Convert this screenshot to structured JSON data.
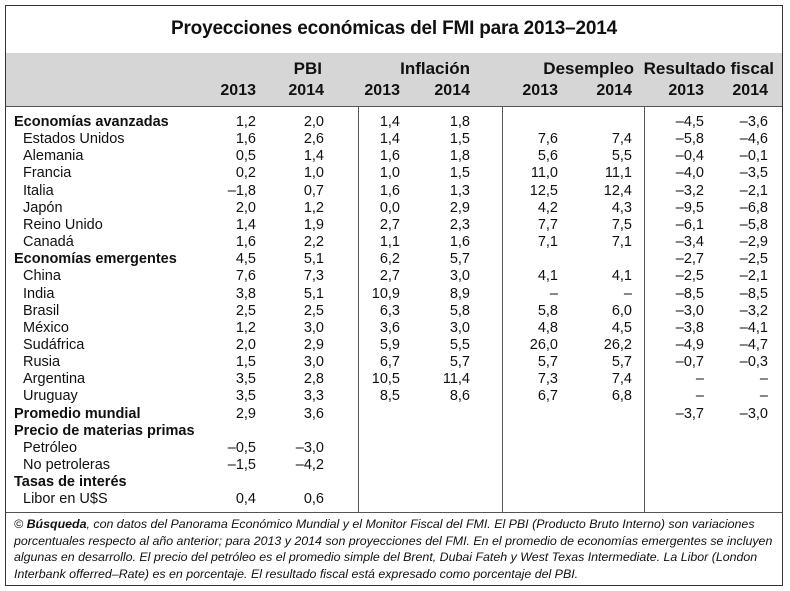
{
  "title": "Proyecciones económicas del FMI para 2013–2014",
  "groups": [
    "PBI",
    "Inflación",
    "Desempleo",
    "Resultado fiscal"
  ],
  "years": [
    "2013",
    "2014",
    "2013",
    "2014",
    "2013",
    "2014",
    "2013",
    "2014"
  ],
  "rows": [
    {
      "label": "Economías avanzadas",
      "bold": true,
      "values": [
        "1,2",
        "2,0",
        "1,4",
        "1,8",
        "",
        "",
        "–4,5",
        "–3,6"
      ]
    },
    {
      "label": "Estados Unidos",
      "bold": false,
      "values": [
        "1,6",
        "2,6",
        "1,4",
        "1,5",
        "7,6",
        "7,4",
        "–5,8",
        "–4,6"
      ]
    },
    {
      "label": "Alemania",
      "bold": false,
      "values": [
        "0,5",
        "1,4",
        "1,6",
        "1,8",
        "5,6",
        "5,5",
        "–0,4",
        "–0,1"
      ]
    },
    {
      "label": "Francia",
      "bold": false,
      "values": [
        "0,2",
        "1,0",
        "1,0",
        "1,5",
        "11,0",
        "11,1",
        "–4,0",
        "–3,5"
      ]
    },
    {
      "label": "Italia",
      "bold": false,
      "values": [
        "–1,8",
        "0,7",
        "1,6",
        "1,3",
        "12,5",
        "12,4",
        "–3,2",
        "–2,1"
      ]
    },
    {
      "label": "Japón",
      "bold": false,
      "values": [
        "2,0",
        "1,2",
        "0,0",
        "2,9",
        "4,2",
        "4,3",
        "–9,5",
        "–6,8"
      ]
    },
    {
      "label": "Reino Unido",
      "bold": false,
      "values": [
        "1,4",
        "1,9",
        "2,7",
        "2,3",
        "7,7",
        "7,5",
        "–6,1",
        "–5,8"
      ]
    },
    {
      "label": "Canadá",
      "bold": false,
      "values": [
        "1,6",
        "2,2",
        "1,1",
        "1,6",
        "7,1",
        "7,1",
        "–3,4",
        "–2,9"
      ]
    },
    {
      "label": "Economías emergentes",
      "bold": true,
      "values": [
        "4,5",
        "5,1",
        "6,2",
        "5,7",
        "",
        "",
        "–2,7",
        "–2,5"
      ]
    },
    {
      "label": "China",
      "bold": false,
      "values": [
        "7,6",
        "7,3",
        "2,7",
        "3,0",
        "4,1",
        "4,1",
        "–2,5",
        "–2,1"
      ]
    },
    {
      "label": "India",
      "bold": false,
      "values": [
        "3,8",
        "5,1",
        "10,9",
        "8,9",
        "–",
        "–",
        "–8,5",
        "–8,5"
      ]
    },
    {
      "label": "Brasil",
      "bold": false,
      "values": [
        "2,5",
        "2,5",
        "6,3",
        "5,8",
        "5,8",
        "6,0",
        "–3,0",
        "–3,2"
      ]
    },
    {
      "label": "México",
      "bold": false,
      "values": [
        "1,2",
        "3,0",
        "3,6",
        "3,0",
        "4,8",
        "4,5",
        "–3,8",
        "–4,1"
      ]
    },
    {
      "label": "Sudáfrica",
      "bold": false,
      "values": [
        "2,0",
        "2,9",
        "5,9",
        "5,5",
        "26,0",
        "26,2",
        "–4,9",
        "–4,7"
      ]
    },
    {
      "label": "Rusia",
      "bold": false,
      "values": [
        "1,5",
        "3,0",
        "6,7",
        "5,7",
        "5,7",
        "5,7",
        "–0,7",
        "–0,3"
      ]
    },
    {
      "label": "Argentina",
      "bold": false,
      "values": [
        "3,5",
        "2,8",
        "10,5",
        "11,4",
        "7,3",
        "7,4",
        "–",
        "–"
      ]
    },
    {
      "label": "Uruguay",
      "bold": false,
      "values": [
        "3,5",
        "3,3",
        "8,5",
        "8,6",
        "6,7",
        "6,8",
        "–",
        "–"
      ]
    },
    {
      "label": "Promedio mundial",
      "bold": true,
      "values": [
        "2,9",
        "3,6",
        "",
        "",
        "",
        "",
        "–3,7",
        "–3,0"
      ]
    },
    {
      "label": "Precio de materias primas",
      "bold": true,
      "values": [
        "",
        "",
        "",
        "",
        "",
        "",
        "",
        ""
      ]
    },
    {
      "label": "Petróleo",
      "bold": false,
      "values": [
        "–0,5",
        "–3,0",
        "",
        "",
        "",
        "",
        "",
        ""
      ]
    },
    {
      "label": "No petroleras",
      "bold": false,
      "values": [
        "–1,5",
        "–4,2",
        "",
        "",
        "",
        "",
        "",
        ""
      ]
    },
    {
      "label": "Tasas de interés",
      "bold": true,
      "values": [
        "",
        "",
        "",
        "",
        "",
        "",
        "",
        ""
      ]
    },
    {
      "label": "Libor en U$S",
      "bold": false,
      "values": [
        "0,4",
        "0,6",
        "",
        "",
        "",
        "",
        "",
        ""
      ]
    }
  ],
  "footnote": {
    "symbol": "©",
    "source": "Búsqueda",
    "text": ", con datos del Panorama Económico Mundial y el Monitor Fiscal del FMI. El PBI (Producto Bruto Interno) son variaciones porcentuales respecto al año anterior; para 2013 y 2014 son proyecciones del FMI. En el promedio de economías emergentes se incluyen algunas en desarrollo. El precio del petróleo es el promedio simple del Brent, Dubai Fateh y West Texas Intermediate. La Libor (London Interbank offerred–Rate) es en porcentaje. El resultado fiscal está expresado como porcentaje del PBI."
  },
  "colors": {
    "header_bg": "#d6d6d6",
    "border": "#333333"
  }
}
